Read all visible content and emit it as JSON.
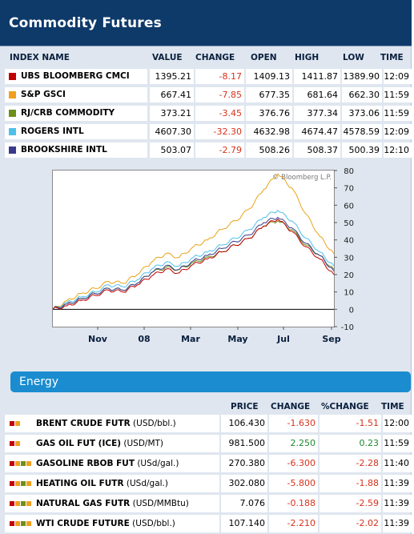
{
  "header": {
    "title": "Commodity Futures"
  },
  "indices": {
    "columns": [
      "INDEX NAME",
      "VALUE",
      "CHANGE",
      "OPEN",
      "HIGH",
      "LOW",
      "TIME"
    ],
    "rows": [
      {
        "name": "UBS BLOOMBERG CMCI",
        "color": "#c00000",
        "value": "1395.21",
        "change": "-8.17",
        "open": "1409.13",
        "high": "1411.87",
        "low": "1389.90",
        "time": "12:09"
      },
      {
        "name": "S&P GSCI",
        "color": "#f0a01e",
        "value": "667.41",
        "change": "-7.85",
        "open": "677.35",
        "high": "681.64",
        "low": "662.30",
        "time": "11:59"
      },
      {
        "name": "RJ/CRB COMMODITY",
        "color": "#6e8f1c",
        "value": "373.21",
        "change": "-3.45",
        "open": "376.76",
        "high": "377.34",
        "low": "373.06",
        "time": "11:59"
      },
      {
        "name": "ROGERS INTL",
        "color": "#4fc0e8",
        "value": "4607.30",
        "change": "-32.30",
        "open": "4632.98",
        "high": "4674.47",
        "low": "4578.59",
        "time": "12:09"
      },
      {
        "name": "BROOKSHIRE INTL",
        "color": "#3a3a8c",
        "value": "503.07",
        "change": "-2.79",
        "open": "508.26",
        "high": "508.37",
        "low": "500.39",
        "time": "12:10"
      }
    ]
  },
  "chart_data": {
    "type": "line",
    "credit": "© Bloomberg L.P.",
    "xticks": [
      "Nov",
      "08",
      "Mar",
      "May",
      "Jul",
      "Sep"
    ],
    "ylim": [
      -10,
      80
    ],
    "yticks": [
      80,
      70,
      60,
      50,
      40,
      30,
      20,
      10,
      0,
      -10
    ],
    "x": [
      0,
      5,
      10,
      15,
      20,
      25,
      30,
      35,
      40,
      45,
      50,
      55,
      60,
      65,
      70,
      75,
      80,
      85,
      90,
      95,
      100
    ],
    "series": [
      {
        "color": "#e8a317",
        "values": [
          0,
          5,
          9,
          12,
          16,
          15,
          20,
          27,
          32,
          30,
          36,
          40,
          46,
          51,
          58,
          69,
          78,
          70,
          55,
          42,
          32
        ]
      },
      {
        "color": "#4fc0e8",
        "values": [
          0,
          4,
          7,
          10,
          14,
          13,
          17,
          23,
          27,
          25,
          30,
          33,
          37,
          41,
          46,
          53,
          57,
          51,
          41,
          33,
          25
        ]
      },
      {
        "color": "#6e8f1c",
        "values": [
          0,
          3,
          6,
          9,
          12,
          11,
          15,
          21,
          24,
          23,
          27,
          30,
          33,
          37,
          41,
          48,
          51,
          46,
          37,
          31,
          23
        ]
      },
      {
        "color": "#3a3a8c",
        "values": [
          0,
          3,
          6,
          9,
          12,
          11,
          15,
          21,
          25,
          23,
          28,
          31,
          35,
          39,
          43,
          50,
          53,
          47,
          38,
          31,
          22
        ]
      },
      {
        "color": "#c00000",
        "values": [
          0,
          2,
          5,
          8,
          11,
          10,
          14,
          19,
          23,
          21,
          26,
          29,
          33,
          37,
          41,
          48,
          52,
          45,
          36,
          29,
          20
        ]
      }
    ]
  },
  "energy": {
    "title": "Energy",
    "columns": [
      "PRICE",
      "CHANGE",
      "%CHANGE",
      "TIME"
    ],
    "rows": [
      {
        "name": "BRENT CRUDE FUTR",
        "unit": "(USD/bbl.)",
        "dots": [
          "#c00000",
          "#f0a01e"
        ],
        "price": "106.430",
        "change": "-1.630",
        "pct": "-1.51",
        "time": "12:00",
        "dir": "neg"
      },
      {
        "name": "GAS OIL FUT (ICE)",
        "unit": "(USD/MT)",
        "dots": [
          "#c00000",
          "#f0a01e"
        ],
        "price": "981.500",
        "change": "2.250",
        "pct": "0.23",
        "time": "11:59",
        "dir": "pos"
      },
      {
        "name": "GASOLINE RBOB FUT",
        "unit": "(USd/gal.)",
        "dots": [
          "#c00000",
          "#f0a01e",
          "#6e8f1c",
          "#f0a01e"
        ],
        "price": "270.380",
        "change": "-6.300",
        "pct": "-2.28",
        "time": "11:40",
        "dir": "neg"
      },
      {
        "name": "HEATING OIL FUTR",
        "unit": "(USd/gal.)",
        "dots": [
          "#c00000",
          "#f0a01e",
          "#6e8f1c",
          "#f0a01e"
        ],
        "price": "302.080",
        "change": "-5.800",
        "pct": "-1.88",
        "time": "11:39",
        "dir": "neg"
      },
      {
        "name": "NATURAL GAS FUTR",
        "unit": "(USD/MMBtu)",
        "dots": [
          "#c00000",
          "#f0a01e",
          "#6e8f1c",
          "#f0a01e"
        ],
        "price": "7.076",
        "change": "-0.188",
        "pct": "-2.59",
        "time": "11:39",
        "dir": "neg"
      },
      {
        "name": "WTI CRUDE FUTURE",
        "unit": "(USD/bbl.)",
        "dots": [
          "#c00000",
          "#f0a01e",
          "#6e8f1c",
          "#f0a01e"
        ],
        "price": "107.140",
        "change": "-2.210",
        "pct": "-2.02",
        "time": "11:39",
        "dir": "neg"
      }
    ]
  }
}
